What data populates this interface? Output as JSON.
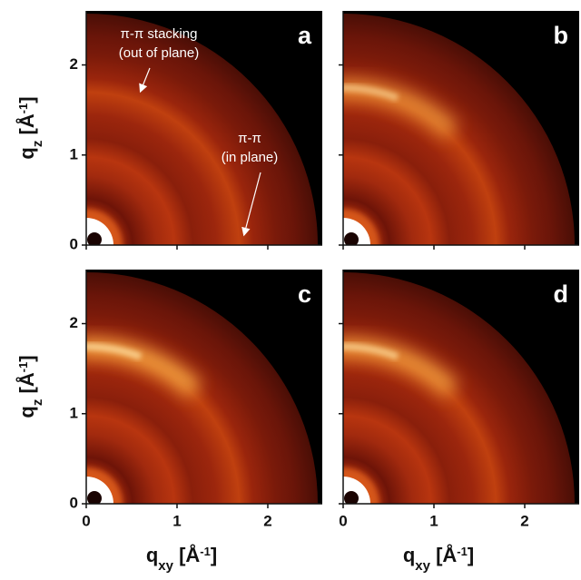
{
  "chart_data": [
    {
      "type": "giwaxs",
      "label": "a",
      "ylabel": [
        "q",
        "z",
        " [Å",
        "-1",
        "]"
      ],
      "xlim": [
        0,
        2.6
      ],
      "ylim": [
        0,
        2.6
      ],
      "xticks": [
        0,
        1,
        2
      ],
      "yticks": [
        0,
        1,
        2
      ],
      "annotations": [
        [
          "π-π stacking",
          "(out of plane)"
        ],
        [
          "π-π",
          "(in plane)"
        ]
      ]
    },
    {
      "type": "giwaxs",
      "label": "b",
      "xlim": [
        0,
        2.6
      ],
      "ylim": [
        0,
        2.6
      ],
      "xticks": [
        0,
        1,
        2
      ],
      "yticks": [
        0,
        1,
        2
      ]
    },
    {
      "type": "giwaxs",
      "label": "c",
      "ylabel": [
        "q",
        "z",
        " [Å",
        "-1",
        "]"
      ],
      "xlabel": [
        "q",
        "xy",
        " [Å",
        "-1",
        "]"
      ],
      "xlim": [
        0,
        2.6
      ],
      "ylim": [
        0,
        2.6
      ],
      "xticks": [
        0,
        1,
        2
      ],
      "yticks": [
        0,
        1,
        2
      ]
    },
    {
      "type": "giwaxs",
      "label": "d",
      "xlabel": [
        "q",
        "xy",
        " [Å",
        "-1",
        "]"
      ],
      "xlim": [
        0,
        2.6
      ],
      "ylim": [
        0,
        2.6
      ],
      "xticks": [
        0,
        1,
        2
      ],
      "yticks": [
        0,
        1,
        2
      ]
    }
  ]
}
